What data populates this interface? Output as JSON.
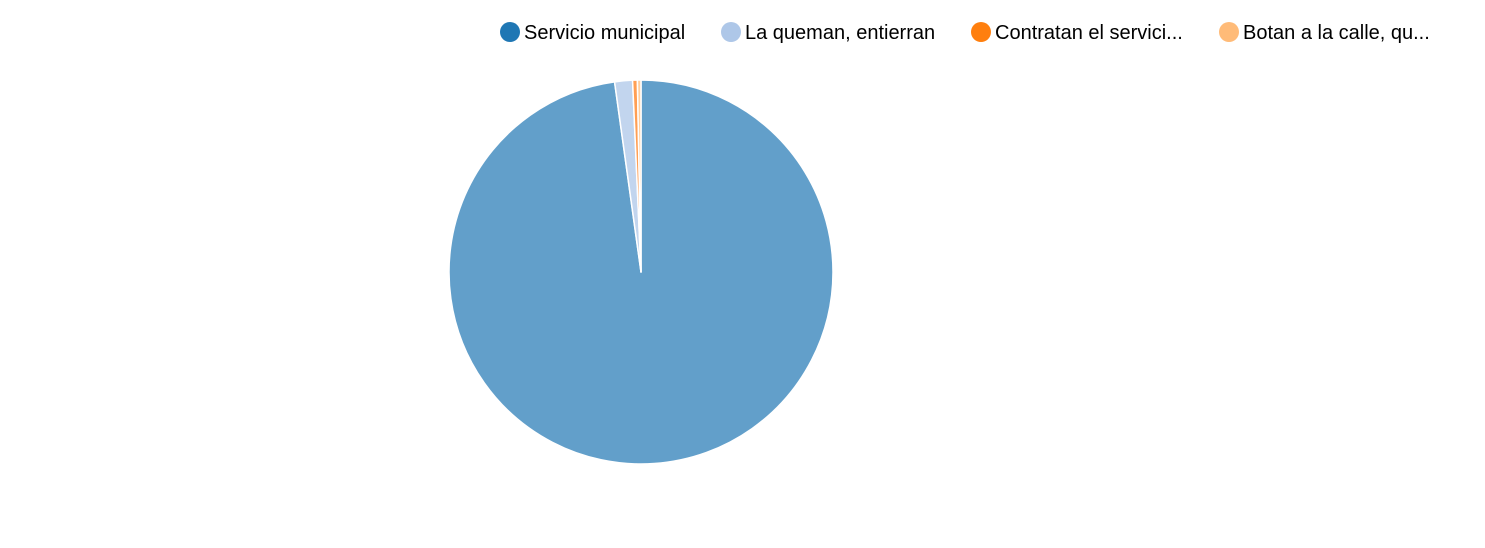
{
  "chart_data": {
    "type": "pie",
    "title": "",
    "legend_position": "top-right",
    "series": [
      {
        "name": "Servicio municipal",
        "value": 97.8,
        "color": "#1f77b4",
        "slice_color": "#629fca"
      },
      {
        "name": "La queman, entierran",
        "value": 1.5,
        "color": "#aec7e8",
        "slice_color": "#c2d5ee"
      },
      {
        "name": "Contratan el servici...",
        "value": 0.4,
        "color": "#ff7f0e",
        "slice_color": "#ff9f54"
      },
      {
        "name": "Botan a la calle, qu...",
        "value": 0.3,
        "color": "#ffbb78",
        "slice_color": "#ffcf9f"
      }
    ]
  }
}
